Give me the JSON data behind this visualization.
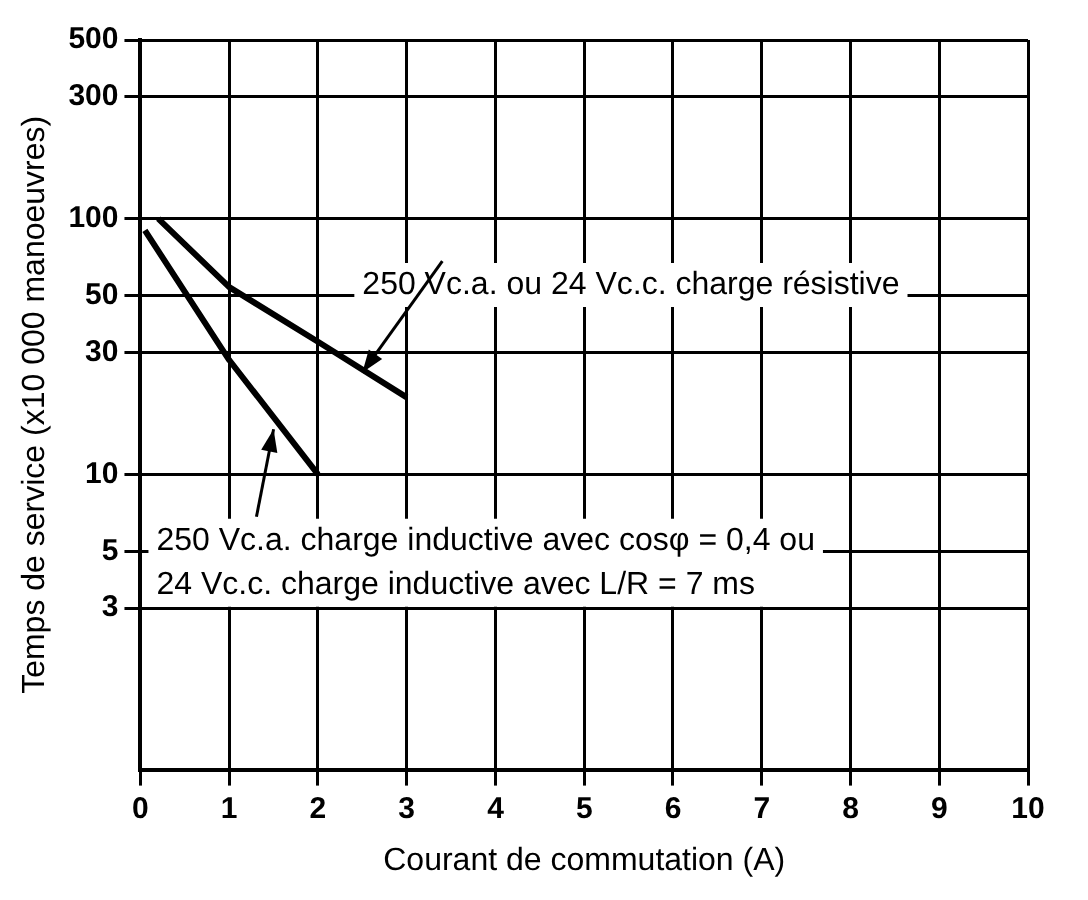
{
  "chart_data": {
    "type": "line",
    "xlabel": "Courant de commutation (A)",
    "ylabel": "Temps de service (x10 000 manoeuvres)",
    "log": "y",
    "grid": true,
    "legend": false,
    "marker": "none",
    "line_style": "solid",
    "xlim": [
      0,
      10
    ],
    "xticks": [
      0,
      1,
      2,
      3,
      4,
      5,
      6,
      7,
      8,
      9,
      10
    ],
    "ylim": [
      0.7,
      500
    ],
    "yticks": [
      3,
      5,
      10,
      30,
      50,
      100,
      300,
      500
    ],
    "series": [
      {
        "color": "#000000",
        "x": [
          0.2,
          1,
          2,
          3
        ],
        "values": [
          100,
          54,
          33,
          20
        ]
      },
      {
        "color": "#000000",
        "x": [
          0.05,
          1,
          2
        ],
        "values": [
          90,
          28,
          10
        ]
      }
    ],
    "annotations": [
      {
        "text": "250 Vc.a. ou 24 Vc.c. charge résistive",
        "x": 2.5,
        "y": 25
      },
      {
        "text": "250 Vc.a. charge inductive avec cosφ = 0,4 ou\n24 Vc.c. charge inductive avec L/R = 7 ms",
        "x": 1.5,
        "y": 15
      }
    ]
  }
}
